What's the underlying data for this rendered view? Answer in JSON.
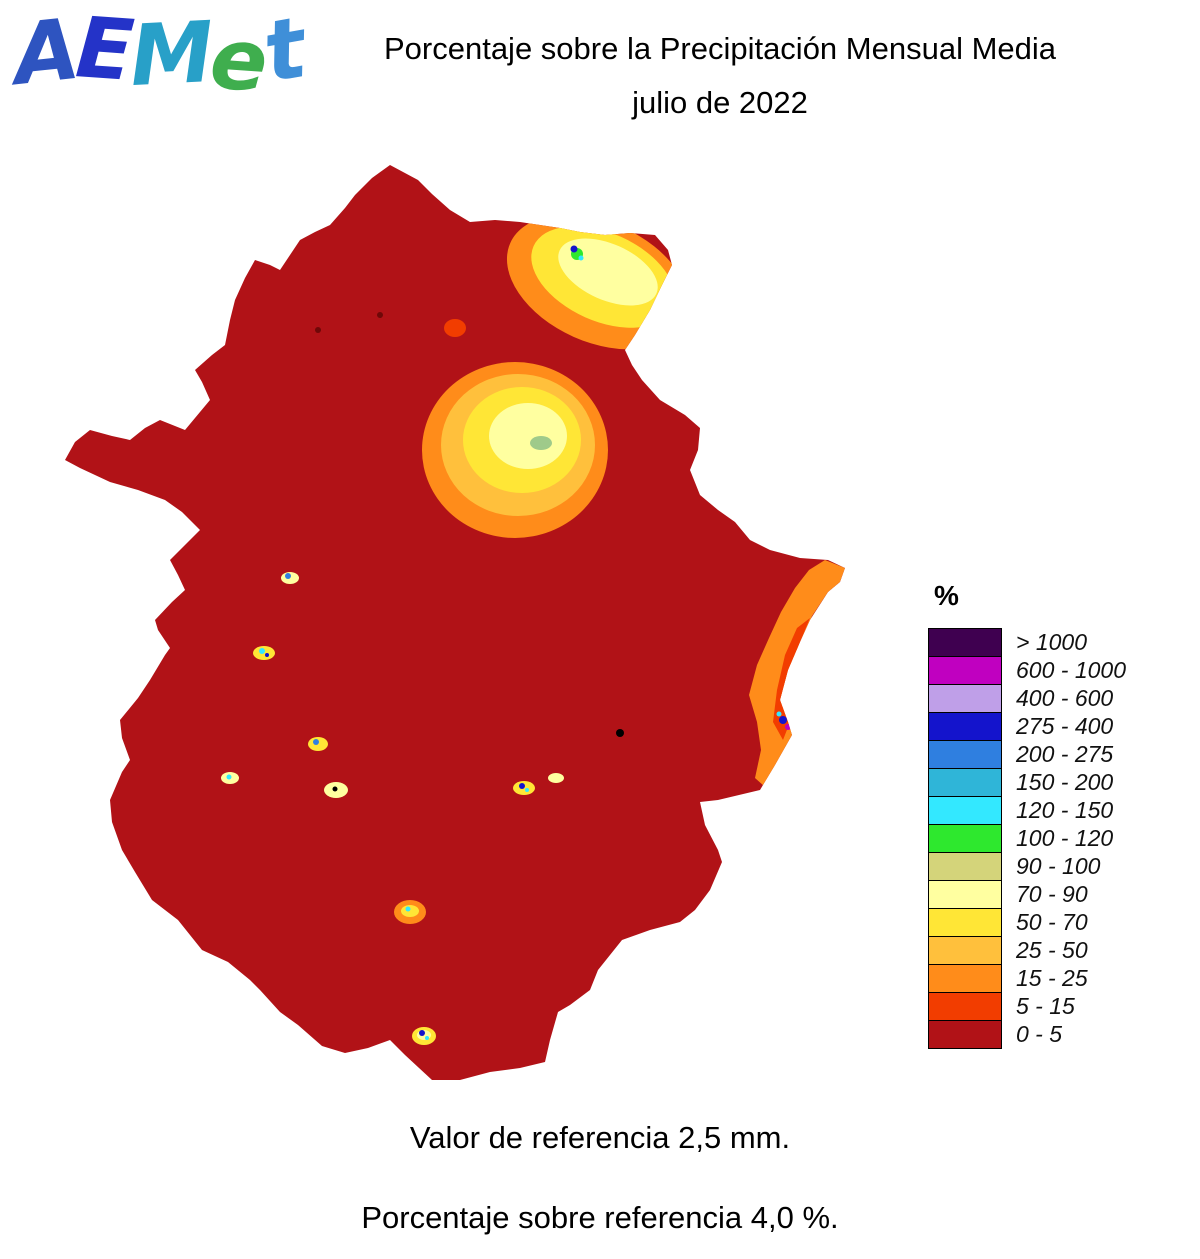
{
  "logo": {
    "letters": [
      {
        "char": "A",
        "color": "#2e54c0"
      },
      {
        "char": "E",
        "color": "#2433c8"
      },
      {
        "char": "M",
        "color": "#28a0c8"
      },
      {
        "char": "e",
        "color": "#3fae4e"
      },
      {
        "char": "t",
        "color": "#3f8fd8"
      }
    ]
  },
  "header": {
    "title_line1": "Porcentaje sobre la Precipitación Mensual Media",
    "title_line2": "julio de 2022"
  },
  "legend": {
    "unit_label": "%",
    "items": [
      {
        "label": "> 1000",
        "color": "#3f0050"
      },
      {
        "label": "600 - 1000",
        "color": "#c000c0"
      },
      {
        "label": "400 - 600",
        "color": "#bf9fe8"
      },
      {
        "label": "275 - 400",
        "color": "#1414cc"
      },
      {
        "label": "200 - 275",
        "color": "#2f7fe0"
      },
      {
        "label": "150 - 200",
        "color": "#2fb5d8"
      },
      {
        "label": "120 - 150",
        "color": "#33e8ff"
      },
      {
        "label": "100 - 120",
        "color": "#2ee82e"
      },
      {
        "label": "90 - 100",
        "color": "#d4d47a"
      },
      {
        "label": "70 - 90",
        "color": "#ffffa0"
      },
      {
        "label": "50 - 70",
        "color": "#ffe636"
      },
      {
        "label": "25 - 50",
        "color": "#ffc03c"
      },
      {
        "label": "15 - 25",
        "color": "#ff8c1a"
      },
      {
        "label": "5 - 15",
        "color": "#f23d00"
      },
      {
        "label": "0 - 5",
        "color": "#b11217"
      }
    ]
  },
  "map": {
    "base_color": "#b11217",
    "pale_green": "#9fca8a",
    "black": "#000000",
    "dark_speck": "#6f0808"
  },
  "footer": {
    "reference_value": "Valor de referencia 2,5 mm.",
    "reference_percentage": "Porcentaje sobre referencia 4,0 %."
  }
}
